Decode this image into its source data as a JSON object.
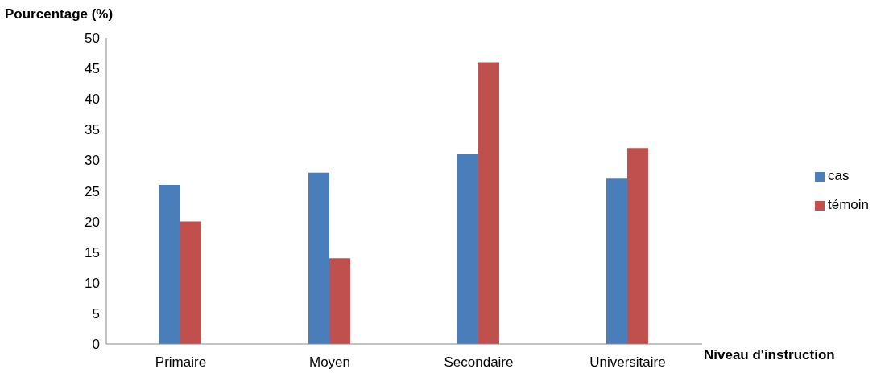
{
  "chart_data": {
    "type": "bar",
    "xlabel": "Niveau d'instruction",
    "ylabel": "Pourcentage (%)",
    "categories": [
      "Primaire",
      "Moyen",
      "Secondaire",
      "Universitaire"
    ],
    "series": [
      {
        "name": "cas",
        "color": "#4a7ebb",
        "values": [
          26,
          28,
          31,
          27
        ]
      },
      {
        "name": "témoin",
        "color": "#c0504d",
        "values": [
          20,
          14,
          46,
          32
        ]
      }
    ],
    "ylim": [
      0,
      50
    ],
    "yticks": [
      0,
      5,
      10,
      15,
      20,
      25,
      30,
      35,
      40,
      45,
      50
    ],
    "grid": false,
    "legend": "right"
  }
}
